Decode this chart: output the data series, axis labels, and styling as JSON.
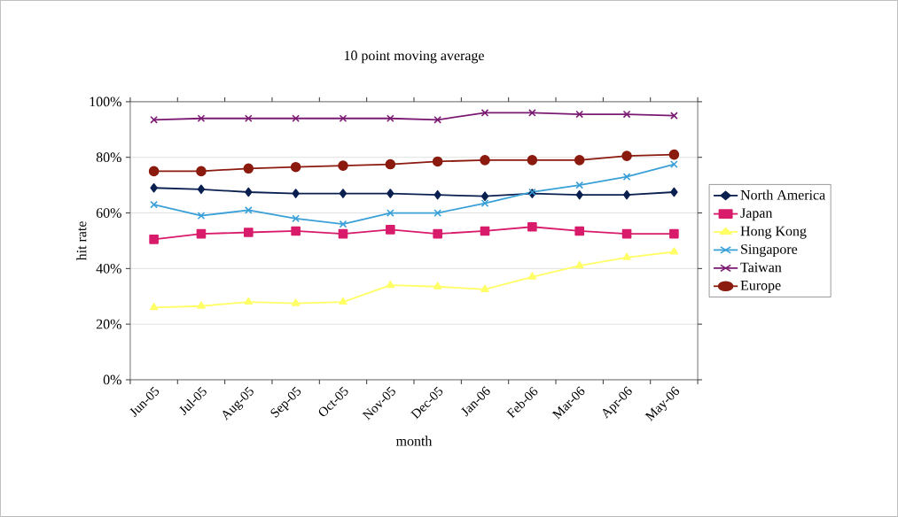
{
  "chart_data": {
    "type": "line",
    "title": "10 point moving average",
    "xlabel": "month",
    "ylabel": "hit rate",
    "categories": [
      "Jun-05",
      "Jul-05",
      "Aug-05",
      "Sep-05",
      "Oct-05",
      "Nov-05",
      "Dec-05",
      "Jan-06",
      "Feb-06",
      "Mar-06",
      "Apr-06",
      "May-06"
    ],
    "series": [
      {
        "name": "North America",
        "color": "#0a2050",
        "marker": "diamond",
        "values": [
          69,
          68.5,
          67.5,
          67,
          67,
          67,
          66.5,
          66,
          67,
          66.5,
          66.5,
          67.5
        ]
      },
      {
        "name": "Japan",
        "color": "#d81b6a",
        "marker": "square",
        "values": [
          50.5,
          52.5,
          53,
          53.5,
          52.5,
          54,
          52.5,
          53.5,
          55,
          53.5,
          52.5,
          52.5
        ]
      },
      {
        "name": "Hong Kong",
        "color": "#ffff66",
        "marker": "triangle",
        "values": [
          26,
          26.5,
          28,
          27.5,
          28,
          34,
          33.5,
          32.5,
          37,
          41,
          44,
          46
        ]
      },
      {
        "name": "Singapore",
        "color": "#3aa0d8",
        "marker": "cross",
        "values": [
          63,
          59,
          61,
          58,
          56,
          60,
          60,
          63.5,
          67.5,
          70,
          73,
          77.5
        ]
      },
      {
        "name": "Taiwan",
        "color": "#7b1a72",
        "marker": "cross",
        "values": [
          93.5,
          94,
          94,
          94,
          94,
          94,
          93.5,
          96,
          96,
          95.5,
          95.5,
          95
        ]
      },
      {
        "name": "Europe",
        "color": "#8b1a0f",
        "marker": "circle",
        "values": [
          75,
          75,
          76,
          76.5,
          77,
          77.5,
          78.5,
          79,
          79,
          79,
          80.5,
          81
        ]
      }
    ],
    "ylim": [
      0,
      100
    ],
    "yticks": [
      {
        "value": 0,
        "label": "0%"
      },
      {
        "value": 20,
        "label": "20%"
      },
      {
        "value": 40,
        "label": "40%"
      },
      {
        "value": 60,
        "label": "60%"
      },
      {
        "value": 80,
        "label": "80%"
      },
      {
        "value": 100,
        "label": "100%"
      }
    ],
    "grid": "y",
    "legend": "right"
  }
}
